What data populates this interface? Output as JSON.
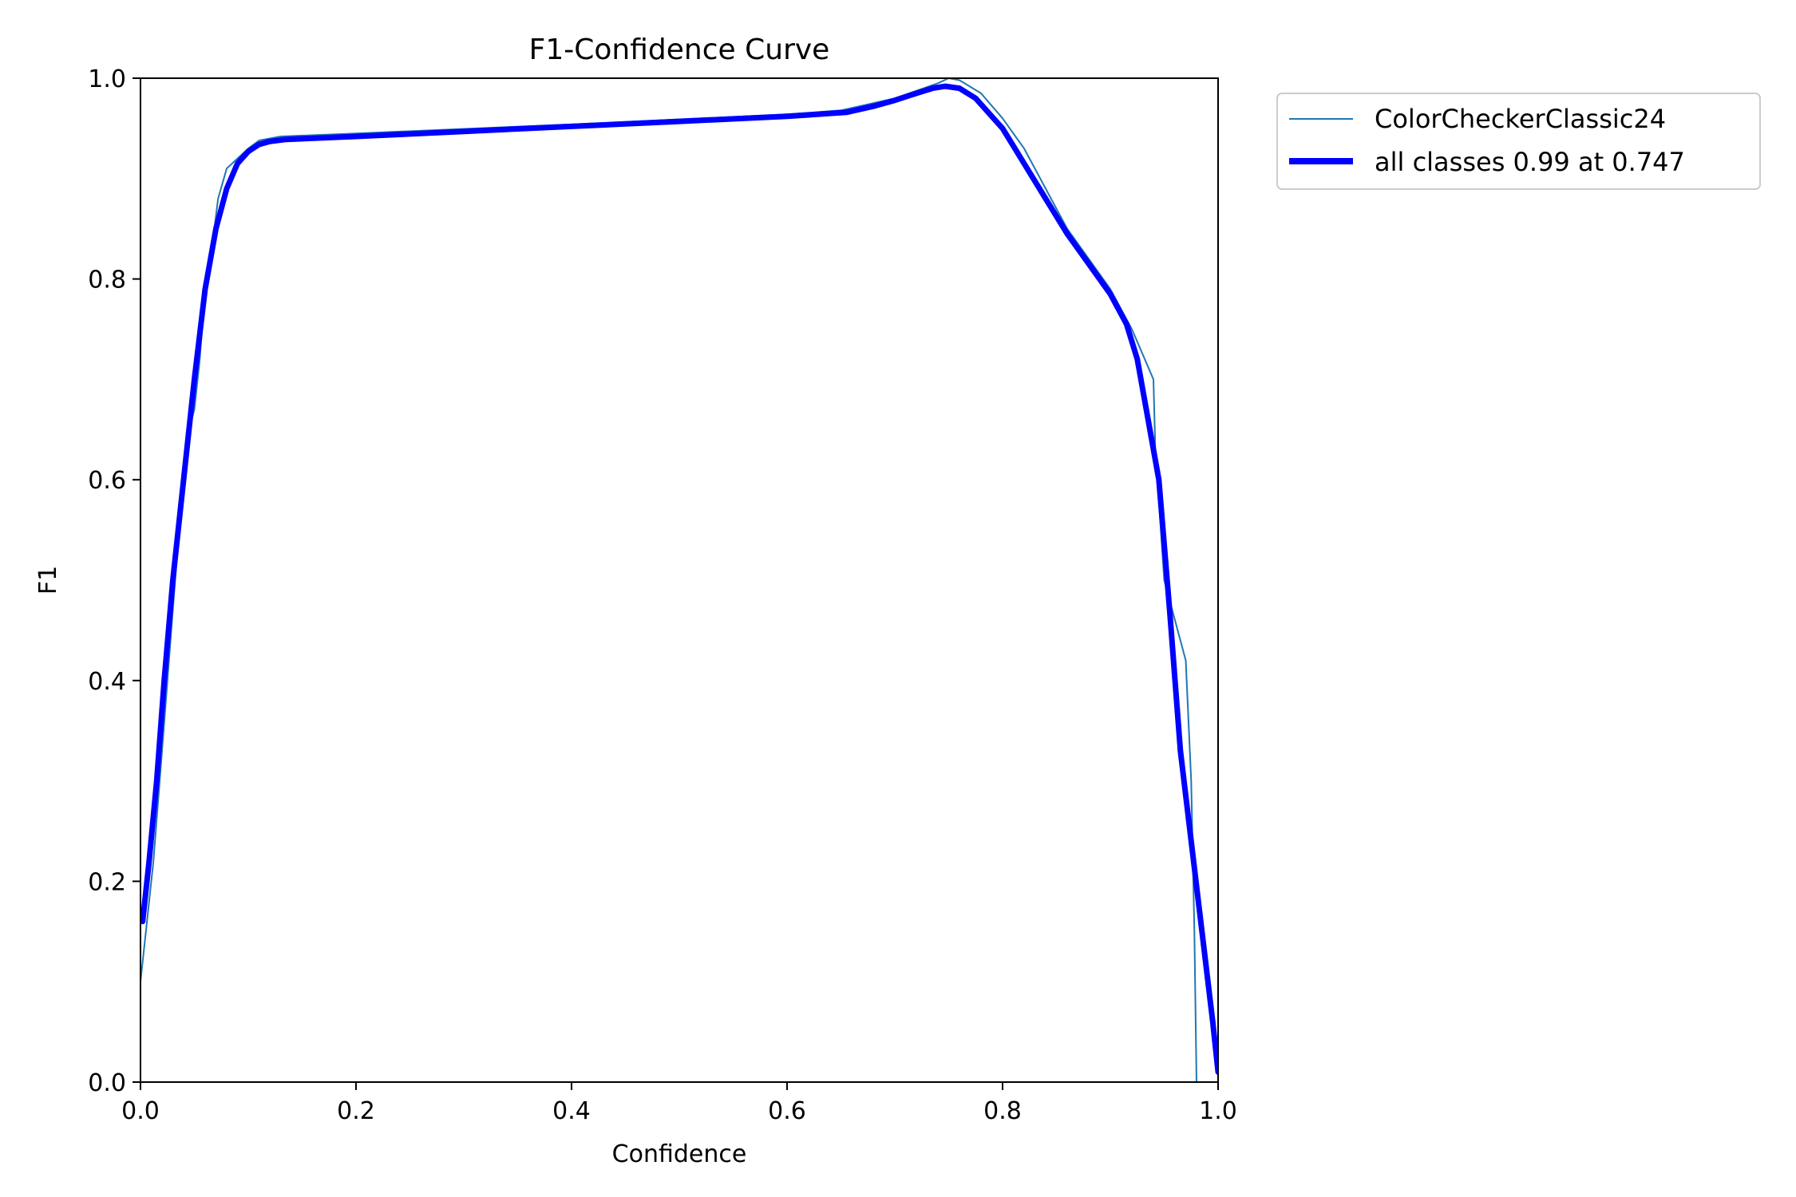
{
  "chart_data": {
    "type": "line",
    "title": "F1-Confidence Curve",
    "xlabel": "Confidence",
    "ylabel": "F1",
    "xlim": [
      0,
      1
    ],
    "ylim": [
      0,
      1
    ],
    "x_ticks": [
      "0.0",
      "0.2",
      "0.4",
      "0.6",
      "0.8",
      "1.0"
    ],
    "y_ticks": [
      "0.0",
      "0.2",
      "0.4",
      "0.6",
      "0.8",
      "1.0"
    ],
    "grid": false,
    "legend_position": "outside-top-right",
    "series": [
      {
        "name": "ColorCheckerClassic24",
        "color": "#1f77b4",
        "style": "thin",
        "x": [
          0.0,
          0.005,
          0.012,
          0.02,
          0.03,
          0.038,
          0.045,
          0.05,
          0.055,
          0.06,
          0.065,
          0.072,
          0.08,
          0.09,
          0.1,
          0.11,
          0.12,
          0.13,
          0.2,
          0.4,
          0.6,
          0.65,
          0.7,
          0.74,
          0.75,
          0.76,
          0.78,
          0.8,
          0.82,
          0.84,
          0.86,
          0.88,
          0.9,
          0.92,
          0.94,
          0.942,
          0.945,
          0.95,
          0.96,
          0.97,
          0.975,
          0.978,
          0.98,
          1.0
        ],
        "y": [
          0.1,
          0.15,
          0.22,
          0.33,
          0.47,
          0.58,
          0.65,
          0.67,
          0.72,
          0.79,
          0.82,
          0.88,
          0.91,
          0.92,
          0.93,
          0.938,
          0.94,
          0.942,
          0.945,
          0.954,
          0.964,
          0.968,
          0.98,
          0.995,
          1.0,
          0.998,
          0.985,
          0.96,
          0.93,
          0.89,
          0.85,
          0.82,
          0.79,
          0.75,
          0.7,
          0.62,
          0.58,
          0.5,
          0.46,
          0.42,
          0.3,
          0.15,
          0.0,
          0.0
        ]
      },
      {
        "name": "all classes 0.99 at 0.747",
        "color": "#0000ff",
        "style": "thick",
        "x": [
          0.002,
          0.008,
          0.015,
          0.022,
          0.03,
          0.04,
          0.05,
          0.06,
          0.07,
          0.08,
          0.09,
          0.1,
          0.11,
          0.12,
          0.135,
          0.2,
          0.3,
          0.4,
          0.5,
          0.6,
          0.655,
          0.68,
          0.7,
          0.72,
          0.735,
          0.747,
          0.76,
          0.775,
          0.79,
          0.8,
          0.82,
          0.84,
          0.86,
          0.88,
          0.9,
          0.915,
          0.925,
          0.935,
          0.945,
          0.955,
          0.965,
          0.975,
          0.985,
          0.995,
          1.0
        ],
        "y": [
          0.16,
          0.22,
          0.3,
          0.4,
          0.5,
          0.6,
          0.7,
          0.79,
          0.85,
          0.89,
          0.915,
          0.927,
          0.934,
          0.937,
          0.939,
          0.942,
          0.947,
          0.952,
          0.957,
          0.962,
          0.966,
          0.972,
          0.978,
          0.985,
          0.99,
          0.992,
          0.99,
          0.98,
          0.962,
          0.95,
          0.915,
          0.88,
          0.845,
          0.815,
          0.785,
          0.755,
          0.72,
          0.66,
          0.6,
          0.47,
          0.33,
          0.24,
          0.15,
          0.06,
          0.01
        ]
      }
    ]
  }
}
